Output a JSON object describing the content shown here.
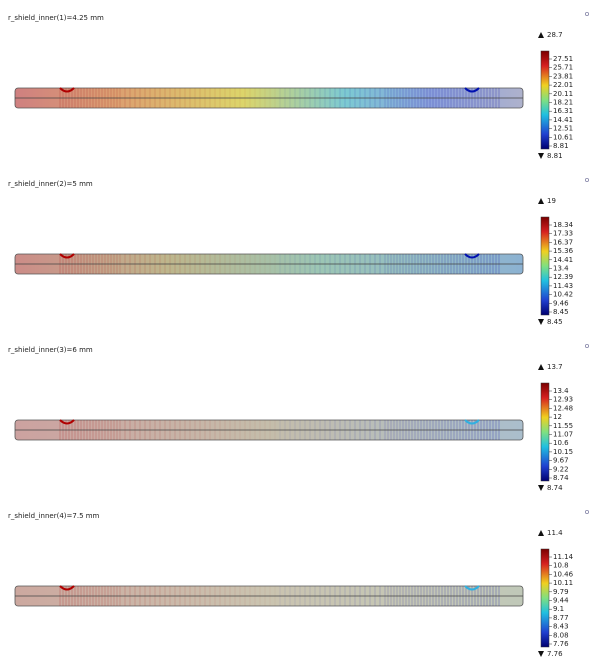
{
  "panels": [
    {
      "title": "r_shield_inner(1)=4.25 mm",
      "max": "28.7",
      "min": "8.81",
      "ticks": [
        "27.51",
        "25.71",
        "23.81",
        "22.01",
        "20.11",
        "18.21",
        "16.31",
        "14.41",
        "12.51",
        "10.61",
        "8.81"
      ]
    },
    {
      "title": "r_shield_inner(2)=5 mm",
      "max": "19",
      "min": "8.45",
      "ticks": [
        "18.34",
        "17.33",
        "16.37",
        "15.36",
        "14.41",
        "13.4",
        "12.39",
        "11.43",
        "10.42",
        "9.46",
        "8.45"
      ]
    },
    {
      "title": "r_shield_inner(3)=6 mm",
      "max": "13.7",
      "min": "8.74",
      "ticks": [
        "13.4",
        "12.93",
        "12.48",
        "12",
        "11.55",
        "11.07",
        "10.6",
        "10.15",
        "9.67",
        "9.22",
        "8.74"
      ]
    },
    {
      "title": "r_shield_inner(4)=7.5 mm",
      "max": "11.4",
      "min": "7.76",
      "ticks": [
        "11.14",
        "10.8",
        "10.46",
        "10.11",
        "9.79",
        "9.44",
        "9.1",
        "8.77",
        "8.43",
        "8.08",
        "7.76"
      ]
    }
  ]
}
